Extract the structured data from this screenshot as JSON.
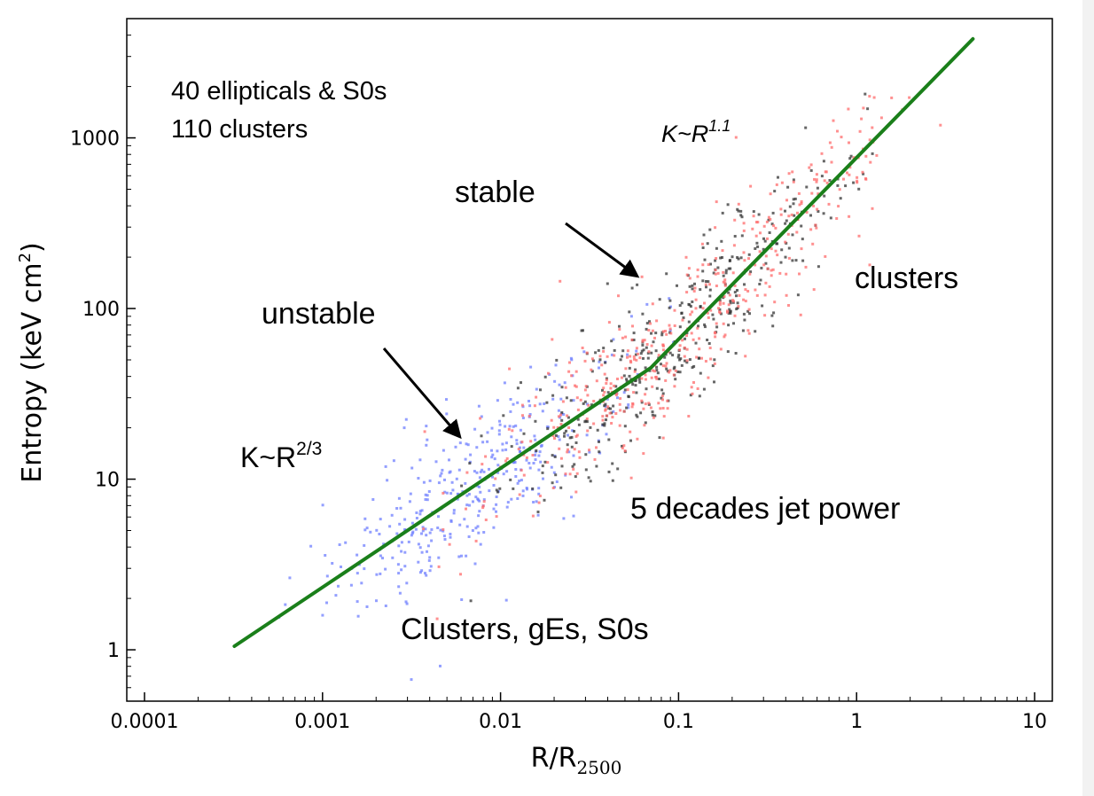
{
  "chart_data": {
    "type": "scatter",
    "xscale": "log",
    "yscale": "log",
    "xlim": [
      0.0001,
      10
    ],
    "ylim": [
      0.5,
      5000
    ],
    "xlabel_main": "R/R",
    "xlabel_sub": "2500",
    "ylabel_main": "Entropy (keV cm",
    "ylabel_sup": "2",
    "ylabel_end": ")",
    "x_ticks": [
      {
        "value": 0.0001,
        "label": "0.0001"
      },
      {
        "value": 0.001,
        "label": "0.001"
      },
      {
        "value": 0.01,
        "label": "0.01"
      },
      {
        "value": 0.1,
        "label": "0.1"
      },
      {
        "value": 1,
        "label": "1"
      },
      {
        "value": 10,
        "label": "10"
      }
    ],
    "y_ticks": [
      {
        "value": 1,
        "label": "1"
      },
      {
        "value": 10,
        "label": "10"
      },
      {
        "value": 100,
        "label": "100"
      },
      {
        "value": 1000,
        "label": "1000"
      }
    ],
    "series": [
      {
        "name": "ellipticals & S0s",
        "color": "#6f7fff",
        "count": 380,
        "xrange": [
          0.0003,
          0.18
        ]
      },
      {
        "name": "clusters (black)",
        "color": "#333333",
        "count": 420,
        "xrange": [
          0.004,
          2.5
        ]
      },
      {
        "name": "clusters (red)",
        "color": "#ff6b6b",
        "count": 480,
        "xrange": [
          0.002,
          5.5
        ]
      }
    ],
    "fit_line": {
      "color": "#1a7f1a",
      "points": [
        {
          "x": 0.00032,
          "y": 1.05
        },
        {
          "x": 0.07,
          "y": 45
        },
        {
          "x": 0.08,
          "y": 52
        },
        {
          "x": 4.5,
          "y": 3800
        }
      ]
    },
    "annotations": {
      "sample_line1": "40 ellipticals & S0s",
      "sample_line2": "110 clusters",
      "k_steep_base": "K~R",
      "k_steep_exp": "1.1",
      "stable": "stable",
      "unstable": "unstable",
      "clusters": "clusters",
      "k_shallow_base": "K~R",
      "k_shallow_exp": "2/3",
      "jet_power": "5 decades jet power",
      "gE_clusters": "Clusters, gEs, S0s"
    }
  }
}
